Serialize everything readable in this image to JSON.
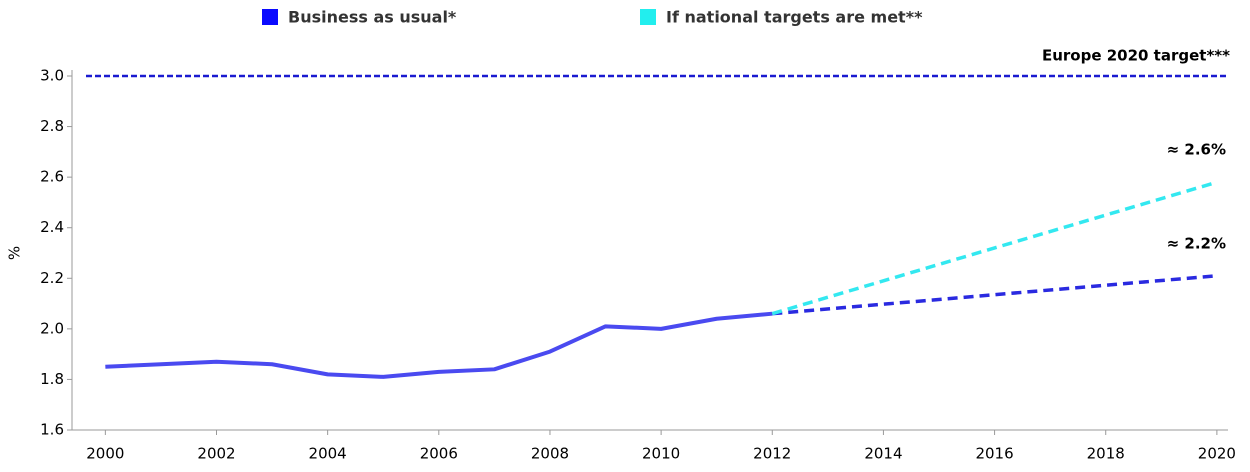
{
  "chart_data": {
    "type": "line",
    "y_label": "%",
    "xlim": [
      1999.4,
      2020.2
    ],
    "xticks": [
      2000,
      2002,
      2004,
      2006,
      2008,
      2010,
      2012,
      2014,
      2016,
      2018,
      2020
    ],
    "ylim": [
      1.6,
      3.0
    ],
    "yticks": [
      1.6,
      1.8,
      {
        "value": 2.0,
        "label": "2.0"
      },
      2.2,
      2.4,
      2.6,
      2.8,
      {
        "value": 3.0,
        "label": "3.0"
      }
    ],
    "series": [
      {
        "x": [
          2000,
          2001,
          2002,
          2003,
          2004,
          2005,
          2006,
          2007,
          2008,
          2009,
          2010,
          2011,
          2012
        ],
        "values": [
          1.85,
          1.86,
          1.87,
          1.86,
          1.82,
          1.81,
          1.83,
          1.84,
          1.91,
          2.01,
          2.0,
          2.04,
          2.06
        ],
        "color": "#4a4af0",
        "dashed": false
      },
      {
        "name": "Business as usual*",
        "x": [
          2012,
          2020
        ],
        "values": [
          2.06,
          2.21
        ],
        "color": "#2a2ae0",
        "legend_color": "#0a0aff",
        "dashed": true,
        "end_label": "≈ 2.2%"
      },
      {
        "name": "If national targets are met**",
        "x": [
          2012,
          2020
        ],
        "values": [
          2.06,
          2.58
        ],
        "color": "#33e8f0",
        "legend_color": "#22eeee",
        "dashed": true,
        "end_label": "≈ 2.6%"
      }
    ],
    "target": {
      "value": 3.0,
      "label": "Europe 2020 target***",
      "color": "#1a1ad0"
    }
  }
}
